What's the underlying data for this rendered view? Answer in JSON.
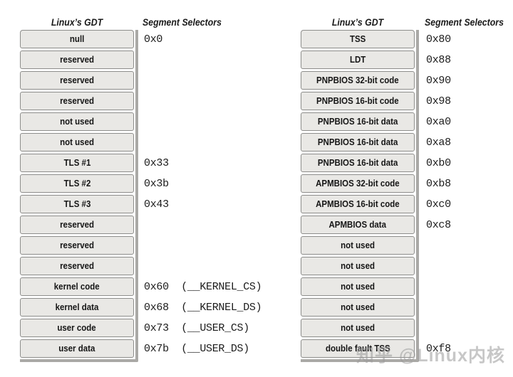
{
  "colors": {
    "row_fill": "#e9e8e5",
    "row_border": "#8d8d8b",
    "table_shadow": "#aaa9a6",
    "text": "#161616",
    "watermark": "#9a9a9a"
  },
  "tables": [
    {
      "gdt_header": "Linux’s GDT",
      "selector_header": "Segment Selectors",
      "rows": [
        {
          "label": "null",
          "selector": "0x0"
        },
        {
          "label": "reserved",
          "selector": ""
        },
        {
          "label": "reserved",
          "selector": ""
        },
        {
          "label": "reserved",
          "selector": ""
        },
        {
          "label": "not used",
          "selector": ""
        },
        {
          "label": "not used",
          "selector": ""
        },
        {
          "label": "TLS #1",
          "selector": "0x33"
        },
        {
          "label": "TLS #2",
          "selector": "0x3b"
        },
        {
          "label": "TLS #3",
          "selector": "0x43"
        },
        {
          "label": "reserved",
          "selector": ""
        },
        {
          "label": "reserved",
          "selector": ""
        },
        {
          "label": "reserved",
          "selector": ""
        },
        {
          "label": "kernel code",
          "selector": "0x60  (__KERNEL_CS)"
        },
        {
          "label": "kernel data",
          "selector": "0x68  (__KERNEL_DS)"
        },
        {
          "label": "user code",
          "selector": "0x73  (__USER_CS)"
        },
        {
          "label": "user data",
          "selector": "0x7b  (__USER_DS)"
        }
      ]
    },
    {
      "gdt_header": "Linux’s GDT",
      "selector_header": "Segment Selectors",
      "rows": [
        {
          "label": "TSS",
          "selector": "0x80"
        },
        {
          "label": "LDT",
          "selector": "0x88"
        },
        {
          "label": "PNPBIOS 32-bit code",
          "selector": "0x90"
        },
        {
          "label": "PNPBIOS 16-bit code",
          "selector": "0x98"
        },
        {
          "label": "PNPBIOS 16-bit data",
          "selector": "0xa0"
        },
        {
          "label": "PNPBIOS 16-bit data",
          "selector": "0xa8"
        },
        {
          "label": "PNPBIOS 16-bit data",
          "selector": "0xb0"
        },
        {
          "label": "APMBIOS 32-bit code",
          "selector": "0xb8"
        },
        {
          "label": "APMBIOS 16-bit code",
          "selector": "0xc0"
        },
        {
          "label": "APMBIOS data",
          "selector": "0xc8"
        },
        {
          "label": "not used",
          "selector": ""
        },
        {
          "label": "not used",
          "selector": ""
        },
        {
          "label": "not used",
          "selector": ""
        },
        {
          "label": "not used",
          "selector": ""
        },
        {
          "label": "not used",
          "selector": ""
        },
        {
          "label": "double fault TSS",
          "selector": "0xf8"
        }
      ]
    }
  ],
  "watermark": "知乎 @Linux内核"
}
